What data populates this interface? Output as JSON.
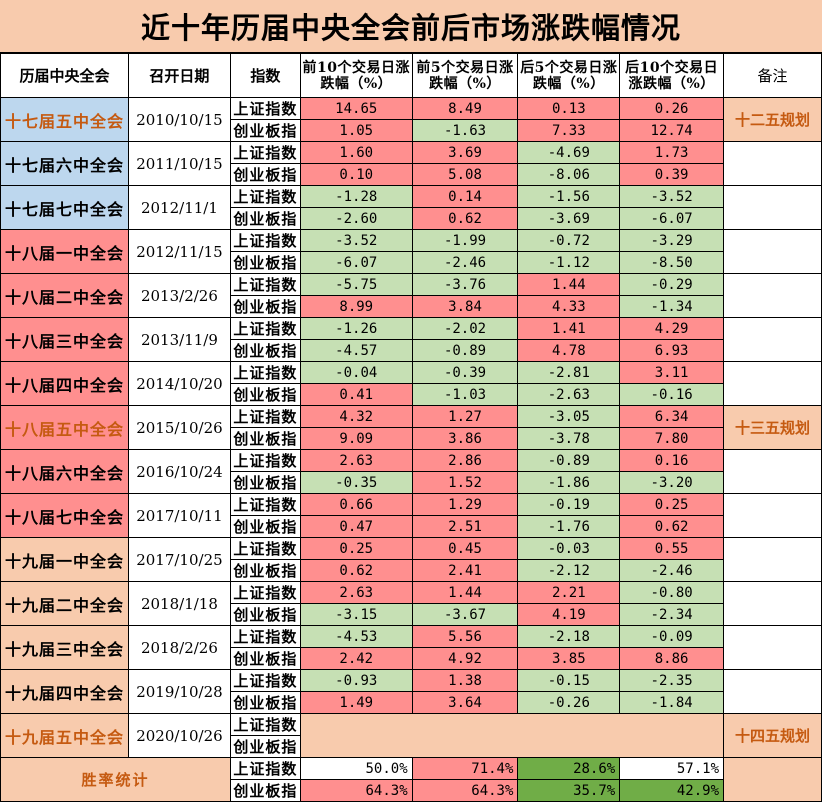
{
  "title": "近十年历届中央全会前后市场涨跌幅情况",
  "headers": {
    "meeting": "历届中央全会",
    "date": "召开日期",
    "index": "指数",
    "pre10": "前10个交易日涨跌幅（%）",
    "pre5": "前5个交易日涨跌幅（%）",
    "post5": "后5个交易日涨跌幅（%）",
    "post10": "后10个交易日涨跌幅（%）",
    "note": "备注"
  },
  "index_names": {
    "sh": "上证指数",
    "cy": "创业板指"
  },
  "colors": {
    "blue": "#bdd7ee",
    "red": "#ff8f8f",
    "green": "#c6e0b4",
    "peach": "#f8cbad",
    "orange_text": "#c55a11",
    "dark_green": "#70ad47"
  },
  "meetings": [
    {
      "name": "十七届五中全会",
      "date": "2010/10/15",
      "bg": "blue",
      "text": "orange",
      "note": "十二五规划",
      "sh": [
        "14.65",
        "8.49",
        "0.13",
        "0.26"
      ],
      "cy": [
        "1.05",
        "-1.63",
        "7.33",
        "12.74"
      ]
    },
    {
      "name": "十七届六中全会",
      "date": "2011/10/15",
      "bg": "blue",
      "text": "black",
      "note": "",
      "sh": [
        "1.60",
        "3.69",
        "-4.69",
        "1.73"
      ],
      "cy": [
        "0.10",
        "5.08",
        "-8.06",
        "0.39"
      ]
    },
    {
      "name": "十七届七中全会",
      "date": "2012/11/1",
      "bg": "blue",
      "text": "black",
      "note": "",
      "sh": [
        "-1.28",
        "0.14",
        "-1.56",
        "-3.52"
      ],
      "cy": [
        "-2.60",
        "0.62",
        "-3.69",
        "-6.07"
      ]
    },
    {
      "name": "十八届一中全会",
      "date": "2012/11/15",
      "bg": "red",
      "text": "black",
      "note": "",
      "sh": [
        "-3.52",
        "-1.99",
        "-0.72",
        "-3.29"
      ],
      "cy": [
        "-6.07",
        "-2.46",
        "-1.12",
        "-8.50"
      ]
    },
    {
      "name": "十八届二中全会",
      "date": "2013/2/26",
      "bg": "red",
      "text": "black",
      "note": "",
      "sh": [
        "-5.75",
        "-3.76",
        "1.44",
        "-0.29"
      ],
      "cy": [
        "8.99",
        "3.84",
        "4.33",
        "-1.34"
      ]
    },
    {
      "name": "十八届三中全会",
      "date": "2013/11/9",
      "bg": "red",
      "text": "black",
      "note": "",
      "sh": [
        "-1.26",
        "-2.02",
        "1.41",
        "4.29"
      ],
      "cy": [
        "-4.57",
        "-0.89",
        "4.78",
        "6.93"
      ]
    },
    {
      "name": "十八届四中全会",
      "date": "2014/10/20",
      "bg": "red",
      "text": "black",
      "note": "",
      "sh": [
        "-0.04",
        "-0.39",
        "-2.81",
        "3.11"
      ],
      "cy": [
        "0.41",
        "-1.03",
        "-2.63",
        "-0.16"
      ]
    },
    {
      "name": "十八届五中全会",
      "date": "2015/10/26",
      "bg": "red",
      "text": "orange",
      "note": "十三五规划",
      "sh": [
        "4.32",
        "1.27",
        "-3.05",
        "6.34"
      ],
      "cy": [
        "9.09",
        "3.86",
        "-3.78",
        "7.80"
      ]
    },
    {
      "name": "十八届六中全会",
      "date": "2016/10/24",
      "bg": "red",
      "text": "black",
      "note": "",
      "sh": [
        "2.63",
        "2.86",
        "-0.89",
        "0.16"
      ],
      "cy": [
        "-0.35",
        "1.52",
        "-1.86",
        "-3.20"
      ]
    },
    {
      "name": "十八届七中全会",
      "date": "2017/10/11",
      "bg": "red",
      "text": "black",
      "note": "",
      "sh": [
        "0.66",
        "1.29",
        "-0.19",
        "0.25"
      ],
      "cy": [
        "0.47",
        "2.51",
        "-1.76",
        "0.62"
      ]
    },
    {
      "name": "十九届一中全会",
      "date": "2017/10/25",
      "bg": "peach",
      "text": "black",
      "note": "",
      "sh": [
        "0.25",
        "0.45",
        "-0.03",
        "0.55"
      ],
      "cy": [
        "0.62",
        "2.41",
        "-2.12",
        "-2.46"
      ]
    },
    {
      "name": "十九届二中全会",
      "date": "2018/1/18",
      "bg": "peach",
      "text": "black",
      "note": "",
      "sh": [
        "2.63",
        "1.44",
        "2.21",
        "-0.80"
      ],
      "cy": [
        "-3.15",
        "-3.67",
        "4.19",
        "-2.34"
      ]
    },
    {
      "name": "十九届三中全会",
      "date": "2018/2/26",
      "bg": "peach",
      "text": "black",
      "note": "",
      "sh": [
        "-4.53",
        "5.56",
        "-2.18",
        "-0.09"
      ],
      "cy": [
        "2.42",
        "4.92",
        "3.85",
        "8.86"
      ]
    },
    {
      "name": "十九届四中全会",
      "date": "2019/10/28",
      "bg": "peach",
      "text": "black",
      "note": "",
      "sh": [
        "-0.93",
        "1.38",
        "-0.15",
        "-2.35"
      ],
      "cy": [
        "1.49",
        "3.64",
        "-0.26",
        "-1.84"
      ]
    },
    {
      "name": "十九届五中全会",
      "date": "2020/10/26",
      "bg": "peach",
      "text": "orange",
      "note": "十四五规划",
      "sh": [],
      "cy": []
    }
  ],
  "stats": {
    "label": "胜率统计",
    "sh": [
      {
        "value": "50.0%",
        "level": "none"
      },
      {
        "value": "71.4%",
        "level": "hi"
      },
      {
        "value": "28.6%",
        "level": "lo"
      },
      {
        "value": "57.1%",
        "level": "none"
      }
    ],
    "cy": [
      {
        "value": "64.3%",
        "level": "hi"
      },
      {
        "value": "64.3%",
        "level": "hi"
      },
      {
        "value": "35.7%",
        "level": "lo"
      },
      {
        "value": "42.9%",
        "level": "lo"
      }
    ]
  }
}
